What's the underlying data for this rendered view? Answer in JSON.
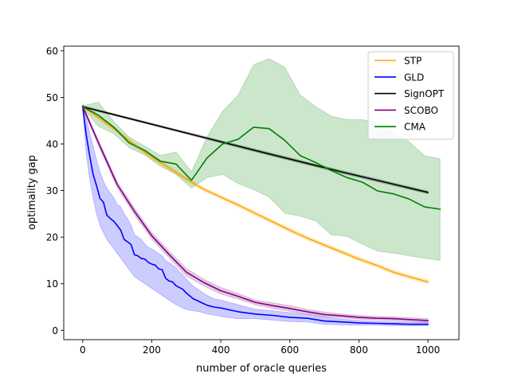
{
  "chart_data": {
    "type": "line",
    "title": "",
    "xlabel": "number of oracle queries",
    "ylabel": "optimality gap",
    "xlim": [
      -55,
      1090
    ],
    "ylim": [
      -2,
      61
    ],
    "xticks": [
      0,
      200,
      400,
      600,
      800,
      1000
    ],
    "yticks": [
      0,
      10,
      20,
      30,
      40,
      50,
      60
    ],
    "grid": false,
    "legend_position": "top-right",
    "series": [
      {
        "name": "STP",
        "color": "#ffa500",
        "x": [
          0,
          50,
          100,
          150,
          200,
          250,
          300,
          350,
          400,
          450,
          500,
          550,
          600,
          650,
          700,
          750,
          800,
          850,
          900,
          950,
          1000
        ],
        "y": [
          48,
          45.5,
          42.8,
          39.8,
          37.2,
          34.9,
          32.5,
          30.3,
          28.6,
          26.9,
          25.1,
          23.3,
          21.5,
          19.8,
          18.3,
          16.8,
          15.3,
          14.0,
          12.5,
          11.4,
          10.4
        ],
        "band_upper": [
          48.3,
          45.9,
          43.2,
          40.2,
          37.6,
          35.3,
          32.9,
          30.7,
          29.0,
          27.3,
          25.5,
          23.7,
          21.9,
          20.2,
          18.7,
          17.2,
          15.7,
          14.4,
          12.9,
          11.8,
          10.8
        ],
        "band_lower": [
          47.7,
          45.1,
          42.4,
          39.4,
          36.8,
          34.5,
          32.1,
          29.9,
          28.2,
          26.5,
          24.7,
          22.9,
          21.1,
          19.4,
          17.9,
          16.4,
          14.9,
          13.6,
          12.1,
          11.0,
          10.0
        ]
      },
      {
        "name": "GLD",
        "color": "#0000ff",
        "x": [
          0,
          10,
          20,
          30,
          40,
          50,
          60,
          70,
          80,
          90,
          100,
          110,
          120,
          130,
          140,
          150,
          160,
          170,
          180,
          190,
          200,
          210,
          220,
          230,
          240,
          250,
          260,
          270,
          280,
          290,
          300,
          320,
          340,
          360,
          380,
          400,
          450,
          500,
          550,
          600,
          650,
          700,
          750,
          800,
          850,
          900,
          950,
          1000
        ],
        "y": [
          48,
          42,
          37.5,
          33.5,
          31,
          28.3,
          27.5,
          24.7,
          24,
          23.4,
          22.5,
          21.5,
          19.5,
          19,
          18.4,
          16.2,
          16,
          15.4,
          15.3,
          14.6,
          14.2,
          14,
          13.2,
          13.0,
          11.2,
          10.6,
          10.4,
          9.6,
          9.2,
          8.8,
          8.0,
          6.8,
          6.1,
          5.4,
          5.0,
          4.8,
          4.0,
          3.5,
          3.2,
          2.8,
          2.6,
          2.0,
          1.8,
          1.6,
          1.5,
          1.4,
          1.3,
          1.3
        ],
        "band_upper": [
          48.8,
          45.5,
          42.5,
          39.5,
          36.5,
          34,
          32,
          30.5,
          29.5,
          28.5,
          27,
          26.5,
          25,
          24,
          22.5,
          20.5,
          20,
          19.5,
          18.5,
          17.8,
          17.5,
          17,
          16.5,
          16,
          15,
          14.5,
          14,
          13.5,
          12.5,
          12,
          11,
          9.5,
          8.5,
          7.5,
          6.8,
          6.5,
          5.5,
          4.5,
          4.2,
          3.8,
          3.4,
          2.8,
          2.4,
          2.1,
          1.9,
          1.8,
          1.7,
          1.7
        ],
        "band_lower": [
          47.3,
          38,
          32.5,
          28.5,
          25,
          22.5,
          21,
          19.5,
          18.5,
          17.5,
          16.5,
          15.5,
          14.5,
          13.5,
          12.5,
          11.5,
          11,
          10.5,
          10,
          9.5,
          9,
          8.5,
          8,
          7.5,
          7,
          6.5,
          6,
          5.5,
          5.2,
          4.8,
          4.5,
          4.2,
          4,
          3.5,
          3.3,
          3,
          2.5,
          2.5,
          2.2,
          1.9,
          1.8,
          1.3,
          1.2,
          1.1,
          1.1,
          1.0,
          1.0,
          1.0
        ]
      },
      {
        "name": "SignOPT",
        "color": "#000000",
        "x": [
          0,
          250,
          500,
          750,
          1000
        ],
        "y": [
          48,
          43.3,
          38.6,
          34.0,
          29.6
        ],
        "band_upper": [
          48.2,
          43.5,
          38.9,
          34.3,
          29.9
        ],
        "band_lower": [
          47.8,
          43.1,
          38.3,
          33.7,
          29.3
        ]
      },
      {
        "name": "SCOBO",
        "color": "#800080",
        "x": [
          0,
          50,
          100,
          150,
          200,
          250,
          300,
          350,
          400,
          450,
          500,
          550,
          600,
          650,
          700,
          750,
          800,
          850,
          900,
          950,
          1000
        ],
        "y": [
          48,
          39.5,
          31.3,
          25.5,
          20.3,
          16.3,
          12.5,
          10.3,
          8.5,
          7.3,
          6.0,
          5.3,
          4.7,
          4.0,
          3.4,
          3.1,
          2.8,
          2.6,
          2.5,
          2.3,
          2.1
        ],
        "band_upper": [
          48.4,
          40.1,
          31.9,
          26.2,
          21.0,
          17.0,
          13.3,
          11.0,
          9.2,
          7.9,
          6.5,
          5.9,
          5.3,
          4.5,
          3.9,
          3.5,
          3.2,
          3.0,
          2.9,
          2.7,
          2.5
        ],
        "band_lower": [
          47.6,
          38.9,
          30.7,
          24.8,
          19.6,
          15.6,
          11.7,
          9.6,
          7.8,
          6.7,
          5.5,
          4.7,
          4.1,
          3.5,
          2.9,
          2.7,
          2.4,
          2.2,
          2.1,
          1.9,
          1.7
        ]
      },
      {
        "name": "CMA",
        "color": "#008000",
        "x": [
          0,
          45,
          90,
          135,
          180,
          225,
          270,
          315,
          360,
          405,
          450,
          495,
          540,
          585,
          630,
          675,
          720,
          765,
          810,
          855,
          900,
          945,
          990,
          1035
        ],
        "y": [
          48,
          46.2,
          43.6,
          40.2,
          38.6,
          36.3,
          35.7,
          32.2,
          37.0,
          40.0,
          41.0,
          43.6,
          43.3,
          40.8,
          37.5,
          36.0,
          34.3,
          32.8,
          31.8,
          29.9,
          29.3,
          28.2,
          26.5,
          26.0
        ],
        "band_upper": [
          48.2,
          49.0,
          44.8,
          41.5,
          39.5,
          37.5,
          38.3,
          34.0,
          41.5,
          47.0,
          50.5,
          57.0,
          58.3,
          56.5,
          50.5,
          48.0,
          46.0,
          45.2,
          45.2,
          44.5,
          42.5,
          40.5,
          37.5,
          36.8
        ],
        "band_lower": [
          47.8,
          43.8,
          42.2,
          39.2,
          37.6,
          35.2,
          33.5,
          30.5,
          32.8,
          33.5,
          31.5,
          30.2,
          28.6,
          25.2,
          24.5,
          23.5,
          20.5,
          20.2,
          18.5,
          17.0,
          16.6,
          16.0,
          15.5,
          15.0
        ]
      }
    ]
  }
}
